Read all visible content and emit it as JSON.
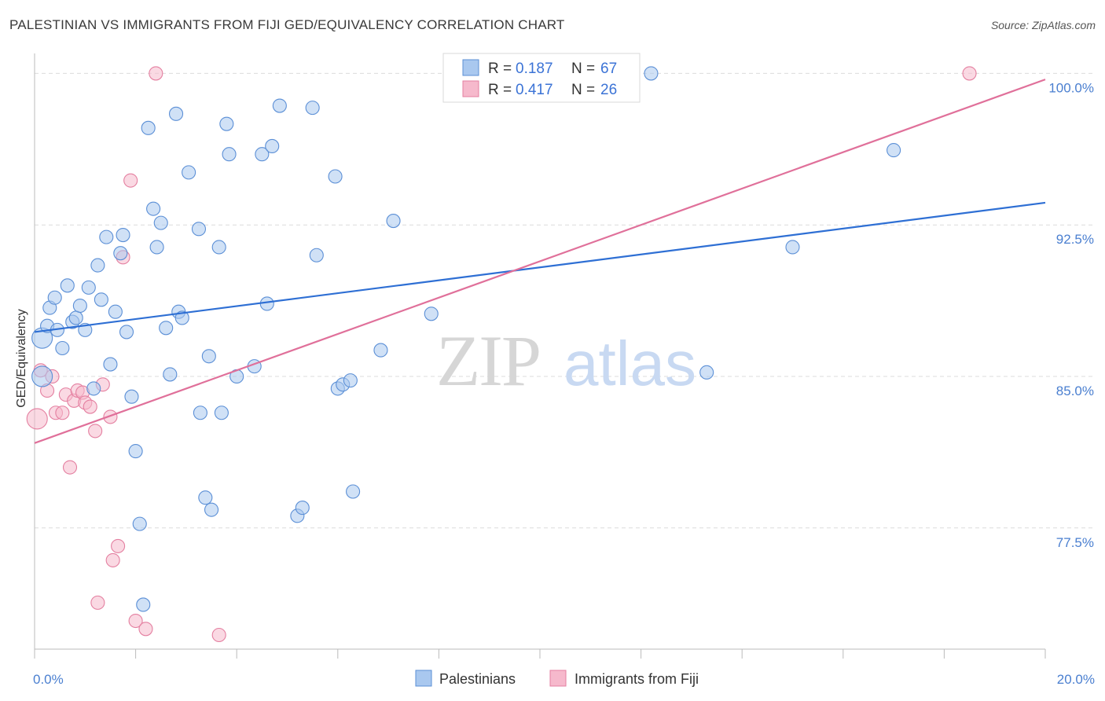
{
  "title": "PALESTINIAN VS IMMIGRANTS FROM FIJI GED/EQUIVALENCY CORRELATION CHART",
  "source": "Source: ZipAtlas.com",
  "watermark": {
    "zip": "ZIP",
    "atlas": "atlas"
  },
  "colors": {
    "blue_fill": "#a9c8ef",
    "blue_stroke": "#5b8fd6",
    "blue_line": "#2e6fd4",
    "pink_fill": "#f6b9cc",
    "pink_stroke": "#e47fa0",
    "pink_line": "#e0709a",
    "grid": "#dcdcdc",
    "axis_text": "#4a7fd0"
  },
  "chart_data": {
    "type": "scatter",
    "xlabel": "",
    "ylabel": "GED/Equivalency",
    "xlim": [
      0,
      20
    ],
    "ylim": [
      71.5,
      101.3
    ],
    "x_tick_labels": [
      {
        "value": 0,
        "label": "0.0%"
      },
      {
        "value": 20,
        "label": "20.0%"
      }
    ],
    "y_tick_labels": [
      {
        "value": 100,
        "label": "100.0%"
      },
      {
        "value": 92.5,
        "label": "92.5%"
      },
      {
        "value": 85,
        "label": "85.0%"
      },
      {
        "value": 77.5,
        "label": "77.5%"
      }
    ],
    "legend_top": [
      {
        "r_label": "R = ",
        "r_value": "0.187",
        "n_label": "N = ",
        "n_value": "67"
      },
      {
        "r_label": "R = ",
        "r_value": "0.417",
        "n_label": "N = ",
        "n_value": "26"
      }
    ],
    "series": [
      {
        "name": "Palestinians",
        "color": "blue",
        "trendline": {
          "x": [
            0,
            20
          ],
          "y": [
            87.2,
            93.6
          ]
        },
        "points": [
          [
            0.15,
            85.0
          ],
          [
            0.15,
            86.9
          ],
          [
            0.25,
            87.5
          ],
          [
            0.3,
            88.4
          ],
          [
            0.4,
            88.9
          ],
          [
            0.45,
            87.3
          ],
          [
            0.55,
            86.4
          ],
          [
            0.65,
            89.5
          ],
          [
            0.75,
            87.7
          ],
          [
            0.82,
            87.9
          ],
          [
            0.9,
            88.5
          ],
          [
            1.0,
            87.3
          ],
          [
            1.07,
            89.4
          ],
          [
            1.17,
            84.4
          ],
          [
            1.25,
            90.5
          ],
          [
            1.32,
            88.8
          ],
          [
            1.42,
            91.9
          ],
          [
            1.5,
            85.6
          ],
          [
            1.6,
            88.2
          ],
          [
            1.7,
            91.1
          ],
          [
            1.75,
            92.0
          ],
          [
            1.82,
            87.2
          ],
          [
            1.92,
            84.0
          ],
          [
            2.0,
            81.3
          ],
          [
            2.08,
            77.7
          ],
          [
            2.15,
            73.7
          ],
          [
            2.25,
            97.3
          ],
          [
            2.35,
            93.3
          ],
          [
            2.42,
            91.4
          ],
          [
            2.5,
            92.6
          ],
          [
            2.6,
            87.4
          ],
          [
            2.68,
            85.1
          ],
          [
            2.8,
            98.0
          ],
          [
            2.85,
            88.2
          ],
          [
            2.92,
            87.9
          ],
          [
            3.05,
            95.1
          ],
          [
            3.25,
            92.3
          ],
          [
            3.28,
            83.2
          ],
          [
            3.38,
            79.0
          ],
          [
            3.45,
            86.0
          ],
          [
            3.5,
            78.4
          ],
          [
            3.65,
            91.4
          ],
          [
            3.7,
            83.2
          ],
          [
            3.8,
            97.5
          ],
          [
            3.85,
            96.0
          ],
          [
            4.0,
            85.0
          ],
          [
            4.35,
            85.5
          ],
          [
            4.5,
            96.0
          ],
          [
            4.6,
            88.6
          ],
          [
            4.7,
            96.4
          ],
          [
            4.85,
            98.4
          ],
          [
            5.2,
            78.1
          ],
          [
            5.3,
            78.5
          ],
          [
            5.5,
            98.3
          ],
          [
            5.58,
            91.0
          ],
          [
            5.95,
            94.9
          ],
          [
            6.0,
            84.4
          ],
          [
            6.1,
            84.6
          ],
          [
            6.25,
            84.8
          ],
          [
            6.3,
            79.3
          ],
          [
            6.85,
            86.3
          ],
          [
            7.1,
            92.7
          ],
          [
            7.85,
            88.1
          ],
          [
            12.2,
            100.0
          ],
          [
            13.3,
            85.2
          ],
          [
            15.0,
            91.4
          ],
          [
            17.0,
            96.2
          ]
        ]
      },
      {
        "name": "Immigrants from Fiji",
        "color": "pink",
        "trendline": {
          "x": [
            0,
            20
          ],
          "y": [
            81.7,
            99.7
          ]
        },
        "points": [
          [
            0.05,
            82.9
          ],
          [
            0.12,
            85.3
          ],
          [
            0.25,
            84.3
          ],
          [
            0.42,
            83.2
          ],
          [
            0.55,
            83.2
          ],
          [
            0.62,
            84.1
          ],
          [
            0.7,
            80.5
          ],
          [
            0.78,
            83.8
          ],
          [
            0.85,
            84.3
          ],
          [
            0.95,
            84.2
          ],
          [
            1.0,
            83.7
          ],
          [
            1.1,
            83.5
          ],
          [
            1.2,
            82.3
          ],
          [
            1.25,
            73.8
          ],
          [
            1.35,
            84.6
          ],
          [
            1.5,
            83.0
          ],
          [
            1.55,
            75.9
          ],
          [
            1.65,
            76.6
          ],
          [
            1.75,
            90.9
          ],
          [
            1.9,
            94.7
          ],
          [
            2.0,
            72.9
          ],
          [
            2.2,
            72.5
          ],
          [
            2.4,
            100.0
          ],
          [
            3.65,
            72.2
          ],
          [
            18.5,
            100.0
          ],
          [
            0.35,
            85.0
          ]
        ]
      }
    ]
  },
  "bottom_legend": [
    {
      "label": "Palestinians",
      "color": "blue"
    },
    {
      "label": "Immigrants from Fiji",
      "color": "pink"
    }
  ]
}
